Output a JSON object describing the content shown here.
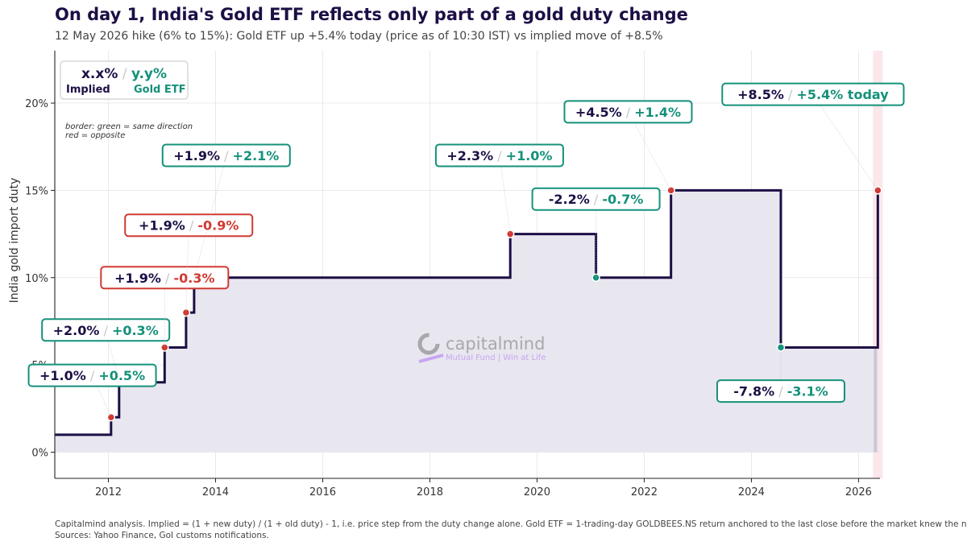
{
  "title": "On day 1, India's Gold ETF reflects only part of a gold duty change",
  "subtitle": "12 May 2026 hike (6% to 15%): Gold ETF up +5.4% today (price as of 10:30 IST) vs implied move of +8.5%",
  "footer": {
    "line1": "Capitalmind analysis. Implied = (1 + new duty) / (1 + old duty) - 1, i.e. price step from the duty change alone. Gold ETF = 1-trading-day GOLDBEES.NS return anchored to the last close before the market knew the news.",
    "line2": "Sources: Yahoo Finance, GoI customs notifications."
  },
  "legend": {
    "implied_sample": "x.x%",
    "separator": "/",
    "etf_sample": "y.y%",
    "implied_label": "Implied",
    "etf_label": "Gold ETF",
    "note_line1": "border: green = same direction",
    "note_line2": "red = opposite"
  },
  "watermark": {
    "brand": "capitalmind",
    "tagline": "Mutual Fund | Win at Life"
  },
  "colors": {
    "navy": "#1d0f45",
    "green": "#14917a",
    "red": "#d03a32",
    "fill": "#e8e6ef",
    "highlight": "#fbe6ea",
    "grid": "#e4e4e4"
  },
  "chart_data": {
    "type": "line",
    "step": true,
    "ylabel": "India gold import duty",
    "xlim": [
      2011.0,
      2026.4
    ],
    "ylim": [
      -1.5,
      23
    ],
    "xticks": [
      2012,
      2014,
      2016,
      2018,
      2020,
      2022,
      2024,
      2026
    ],
    "xtick_labels": [
      "2012",
      "2014",
      "2016",
      "2018",
      "2020",
      "2022",
      "2024",
      "2026"
    ],
    "yticks": [
      0,
      5,
      10,
      15,
      20
    ],
    "ytick_labels": [
      "0%",
      "5%",
      "10%",
      "15%",
      "20%"
    ],
    "grid": true,
    "duty_steps": [
      {
        "x": 2011.0,
        "y": 1
      },
      {
        "x": 2012.05,
        "y": 2
      },
      {
        "x": 2012.2,
        "y": 4
      },
      {
        "x": 2013.05,
        "y": 6
      },
      {
        "x": 2013.45,
        "y": 8
      },
      {
        "x": 2013.6,
        "y": 10
      },
      {
        "x": 2019.5,
        "y": 12.5
      },
      {
        "x": 2021.1,
        "y": 10
      },
      {
        "x": 2022.5,
        "y": 15
      },
      {
        "x": 2024.55,
        "y": 6
      },
      {
        "x": 2026.36,
        "y": 15
      }
    ],
    "end_x": 2026.36,
    "events": [
      {
        "x": 2012.05,
        "y": 2,
        "implied": "+1.0%",
        "etf": "+0.5%",
        "direction": "same",
        "dot": "red",
        "label_x": 2011.7,
        "label_y": 4.4
      },
      {
        "x": 2012.2,
        "y": 4,
        "implied": "+2.0%",
        "etf": "+0.3%",
        "direction": "same",
        "dot": "red",
        "label_x": 2011.95,
        "label_y": 7.0
      },
      {
        "x": 2013.05,
        "y": 6,
        "implied": "+1.9%",
        "etf": "-0.3%",
        "direction": "opposite",
        "dot": "red",
        "label_x": 2013.05,
        "label_y": 10.0
      },
      {
        "x": 2013.45,
        "y": 8,
        "implied": "+1.9%",
        "etf": "-0.9%",
        "direction": "opposite",
        "dot": "red",
        "label_x": 2013.5,
        "label_y": 13.0
      },
      {
        "x": 2013.6,
        "y": 10,
        "implied": "+1.9%",
        "etf": "+2.1%",
        "direction": "same",
        "dot": "red",
        "label_x": 2014.2,
        "label_y": 17.0
      },
      {
        "x": 2019.5,
        "y": 12.5,
        "implied": "+2.3%",
        "etf": "+1.0%",
        "direction": "same",
        "dot": "red",
        "label_x": 2019.3,
        "label_y": 17.0
      },
      {
        "x": 2021.1,
        "y": 10,
        "implied": "-2.2%",
        "etf": "-0.7%",
        "direction": "same",
        "dot": "green",
        "label_x": 2021.1,
        "label_y": 14.5
      },
      {
        "x": 2022.5,
        "y": 15,
        "implied": "+4.5%",
        "etf": "+1.4%",
        "direction": "same",
        "dot": "red",
        "label_x": 2021.7,
        "label_y": 19.5
      },
      {
        "x": 2024.55,
        "y": 6,
        "implied": "-7.8%",
        "etf": "-3.1%",
        "direction": "same",
        "dot": "green",
        "label_x": 2024.55,
        "label_y": 3.5
      },
      {
        "x": 2026.36,
        "y": 15,
        "implied": "+8.5%",
        "etf": "+5.4%  today",
        "direction": "same",
        "dot": "red",
        "label_x": 2025.15,
        "label_y": 20.5
      }
    ]
  }
}
